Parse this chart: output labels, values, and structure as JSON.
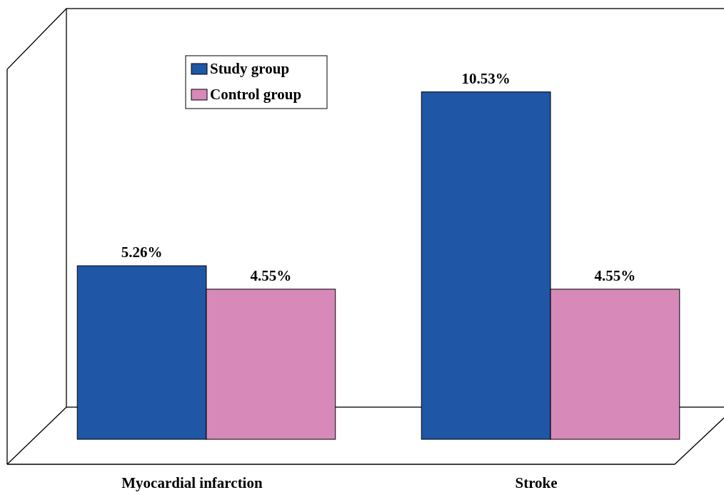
{
  "chart_data": {
    "type": "bar",
    "categories": [
      "Myocardial infarction",
      "Stroke"
    ],
    "series": [
      {
        "name": "Study group",
        "color": "#1f56a6",
        "values": [
          5.26,
          10.53
        ],
        "value_labels": [
          "5.26%",
          "10.53%"
        ]
      },
      {
        "name": "Control group",
        "color": "#d789b9",
        "values": [
          4.55,
          4.55
        ],
        "value_labels": [
          "4.55%",
          "4.55%"
        ]
      }
    ],
    "legend": "top left"
  }
}
